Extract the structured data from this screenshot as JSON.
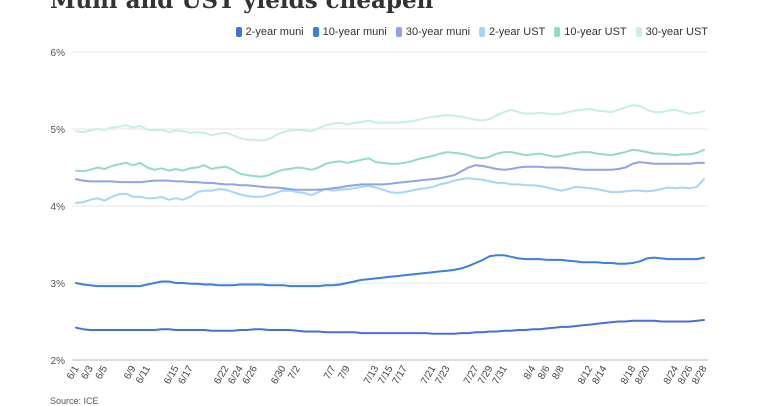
{
  "chart_data": {
    "type": "line",
    "title": "Muni and UST yields cheapen",
    "x": [
      "6/1",
      "6/2",
      "6/3",
      "6/4",
      "6/5",
      "6/6",
      "6/7",
      "6/8",
      "6/9",
      "6/10",
      "6/11",
      "6/12",
      "6/13",
      "6/14",
      "6/15",
      "6/16",
      "6/17",
      "6/18",
      "6/19",
      "6/20",
      "6/21",
      "6/22",
      "6/23",
      "6/24",
      "6/25",
      "6/26",
      "6/27",
      "6/28",
      "6/29",
      "6/30",
      "7/1",
      "7/2",
      "7/3",
      "7/4",
      "7/5",
      "7/6",
      "7/7",
      "7/8",
      "7/9",
      "7/10",
      "7/11",
      "7/12",
      "7/13",
      "7/14",
      "7/15",
      "7/16",
      "7/17",
      "7/18",
      "7/19",
      "7/20",
      "7/21",
      "7/22",
      "7/23",
      "7/24",
      "7/25",
      "7/26",
      "7/27",
      "7/28",
      "7/29",
      "7/30",
      "7/31",
      "8/1",
      "8/2",
      "8/3",
      "8/4",
      "8/5",
      "8/6",
      "8/7",
      "8/8",
      "8/9",
      "8/10",
      "8/11",
      "8/12",
      "8/13",
      "8/14",
      "8/15",
      "8/16",
      "8/17",
      "8/18",
      "8/19",
      "8/20",
      "8/21",
      "8/22",
      "8/23",
      "8/24",
      "8/25",
      "8/26",
      "8/27",
      "8/28"
    ],
    "x_tick_labels": [
      "6/1",
      "6/3",
      "6/5",
      "6/9",
      "6/11",
      "6/15",
      "6/17",
      "6/22",
      "6/24",
      "6/26",
      "6/30",
      "7/2",
      "7/7",
      "7/9",
      "7/13",
      "7/15",
      "7/17",
      "7/21",
      "7/23",
      "7/27",
      "7/29",
      "7/31",
      "8/4",
      "8/6",
      "8/8",
      "8/12",
      "8/14",
      "8/18",
      "8/20",
      "8/24",
      "8/26",
      "8/28"
    ],
    "y_ticks": [
      2,
      3,
      4,
      5,
      6
    ],
    "y_tick_suffix": "%",
    "ylim": [
      2,
      6
    ],
    "legend_position": "top-right",
    "grid": true,
    "series": [
      {
        "name": "2-year muni",
        "color": "#4a6fd8",
        "values": [
          2.42,
          2.4,
          2.39,
          2.39,
          2.39,
          2.39,
          2.39,
          2.39,
          2.39,
          2.39,
          2.39,
          2.39,
          2.4,
          2.4,
          2.39,
          2.39,
          2.39,
          2.39,
          2.39,
          2.38,
          2.38,
          2.38,
          2.38,
          2.39,
          2.39,
          2.4,
          2.4,
          2.39,
          2.39,
          2.39,
          2.39,
          2.38,
          2.37,
          2.37,
          2.37,
          2.36,
          2.36,
          2.36,
          2.36,
          2.36,
          2.35,
          2.35,
          2.35,
          2.35,
          2.35,
          2.35,
          2.35,
          2.35,
          2.35,
          2.35,
          2.34,
          2.34,
          2.34,
          2.34,
          2.35,
          2.35,
          2.36,
          2.36,
          2.37,
          2.37,
          2.38,
          2.38,
          2.39,
          2.39,
          2.4,
          2.4,
          2.41,
          2.42,
          2.43,
          2.43,
          2.44,
          2.45,
          2.46,
          2.47,
          2.48,
          2.49,
          2.5,
          2.5,
          2.51,
          2.51,
          2.51,
          2.51,
          2.5,
          2.5,
          2.5,
          2.5,
          2.5,
          2.51,
          2.52
        ]
      },
      {
        "name": "10-year muni",
        "color": "#3d7fe0",
        "values": [
          3.0,
          2.98,
          2.97,
          2.96,
          2.96,
          2.96,
          2.96,
          2.96,
          2.96,
          2.96,
          2.98,
          3.0,
          3.02,
          3.02,
          3.0,
          3.0,
          2.99,
          2.99,
          2.98,
          2.98,
          2.97,
          2.97,
          2.97,
          2.98,
          2.98,
          2.98,
          2.98,
          2.97,
          2.97,
          2.97,
          2.96,
          2.96,
          2.96,
          2.96,
          2.96,
          2.97,
          2.97,
          2.98,
          3.0,
          3.02,
          3.04,
          3.05,
          3.06,
          3.07,
          3.08,
          3.09,
          3.1,
          3.11,
          3.12,
          3.13,
          3.14,
          3.15,
          3.16,
          3.17,
          3.19,
          3.22,
          3.26,
          3.3,
          3.35,
          3.36,
          3.36,
          3.34,
          3.32,
          3.31,
          3.31,
          3.31,
          3.3,
          3.3,
          3.3,
          3.29,
          3.28,
          3.27,
          3.27,
          3.27,
          3.26,
          3.26,
          3.25,
          3.25,
          3.26,
          3.28,
          3.32,
          3.33,
          3.32,
          3.31,
          3.31,
          3.31,
          3.31,
          3.31,
          3.33
        ]
      },
      {
        "name": "30-year muni",
        "color": "#8fa2ea",
        "values": [
          4.35,
          4.33,
          4.32,
          4.32,
          4.32,
          4.32,
          4.31,
          4.31,
          4.31,
          4.31,
          4.32,
          4.33,
          4.33,
          4.33,
          4.32,
          4.32,
          4.31,
          4.31,
          4.3,
          4.3,
          4.29,
          4.28,
          4.28,
          4.27,
          4.27,
          4.26,
          4.25,
          4.24,
          4.24,
          4.23,
          4.22,
          4.21,
          4.21,
          4.21,
          4.21,
          4.22,
          4.23,
          4.24,
          4.26,
          4.27,
          4.28,
          4.28,
          4.28,
          4.28,
          4.29,
          4.3,
          4.31,
          4.32,
          4.33,
          4.34,
          4.35,
          4.36,
          4.38,
          4.4,
          4.45,
          4.5,
          4.53,
          4.52,
          4.5,
          4.48,
          4.47,
          4.48,
          4.5,
          4.51,
          4.51,
          4.51,
          4.5,
          4.5,
          4.5,
          4.49,
          4.48,
          4.47,
          4.47,
          4.47,
          4.47,
          4.47,
          4.48,
          4.5,
          4.55,
          4.57,
          4.56,
          4.55,
          4.55,
          4.55,
          4.55,
          4.55,
          4.55,
          4.56,
          4.56
        ]
      },
      {
        "name": "2-year UST",
        "color": "#a9d4f2",
        "values": [
          4.04,
          4.05,
          4.08,
          4.1,
          4.07,
          4.12,
          4.15,
          4.16,
          4.12,
          4.12,
          4.1,
          4.1,
          4.12,
          4.08,
          4.1,
          4.08,
          4.12,
          4.18,
          4.2,
          4.2,
          4.22,
          4.21,
          4.18,
          4.15,
          4.13,
          4.12,
          4.12,
          4.14,
          4.17,
          4.2,
          4.2,
          4.18,
          4.17,
          4.14,
          4.18,
          4.22,
          4.2,
          4.21,
          4.22,
          4.23,
          4.25,
          4.26,
          4.24,
          4.21,
          4.18,
          4.17,
          4.18,
          4.2,
          4.22,
          4.23,
          4.25,
          4.28,
          4.3,
          4.33,
          4.35,
          4.36,
          4.35,
          4.34,
          4.32,
          4.3,
          4.3,
          4.28,
          4.28,
          4.27,
          4.27,
          4.26,
          4.24,
          4.22,
          4.2,
          4.22,
          4.25,
          4.24,
          4.23,
          4.22,
          4.2,
          4.18,
          4.18,
          4.19,
          4.2,
          4.2,
          4.19,
          4.2,
          4.22,
          4.24,
          4.23,
          4.24,
          4.23,
          4.25,
          4.35
        ]
      },
      {
        "name": "10-year UST",
        "color": "#92dcc0",
        "values": [
          4.46,
          4.45,
          4.47,
          4.5,
          4.48,
          4.52,
          4.54,
          4.56,
          4.53,
          4.56,
          4.5,
          4.47,
          4.49,
          4.46,
          4.48,
          4.46,
          4.49,
          4.5,
          4.53,
          4.48,
          4.5,
          4.51,
          4.47,
          4.42,
          4.4,
          4.39,
          4.38,
          4.4,
          4.44,
          4.47,
          4.48,
          4.5,
          4.49,
          4.47,
          4.5,
          4.55,
          4.57,
          4.58,
          4.56,
          4.58,
          4.6,
          4.62,
          4.57,
          4.56,
          4.55,
          4.55,
          4.56,
          4.58,
          4.61,
          4.63,
          4.65,
          4.68,
          4.7,
          4.69,
          4.68,
          4.66,
          4.63,
          4.62,
          4.64,
          4.68,
          4.7,
          4.7,
          4.68,
          4.66,
          4.67,
          4.68,
          4.66,
          4.64,
          4.65,
          4.67,
          4.69,
          4.7,
          4.7,
          4.68,
          4.67,
          4.66,
          4.68,
          4.7,
          4.73,
          4.72,
          4.7,
          4.68,
          4.68,
          4.67,
          4.66,
          4.67,
          4.67,
          4.69,
          4.73
        ]
      },
      {
        "name": "30-year UST",
        "color": "#c8f0da",
        "values": [
          4.97,
          4.96,
          4.98,
          5.0,
          4.99,
          5.02,
          5.03,
          5.05,
          5.02,
          5.04,
          4.99,
          4.98,
          4.99,
          4.96,
          4.98,
          4.97,
          4.95,
          4.96,
          4.95,
          4.92,
          4.94,
          4.95,
          4.92,
          4.88,
          4.86,
          4.86,
          4.85,
          4.87,
          4.92,
          4.96,
          4.98,
          4.99,
          4.98,
          4.97,
          5.01,
          5.05,
          5.07,
          5.08,
          5.06,
          5.08,
          5.09,
          5.11,
          5.08,
          5.08,
          5.08,
          5.08,
          5.09,
          5.1,
          5.12,
          5.14,
          5.16,
          5.17,
          5.18,
          5.17,
          5.16,
          5.14,
          5.12,
          5.11,
          5.13,
          5.18,
          5.22,
          5.25,
          5.22,
          5.2,
          5.2,
          5.21,
          5.2,
          5.19,
          5.2,
          5.22,
          5.24,
          5.25,
          5.26,
          5.24,
          5.23,
          5.22,
          5.25,
          5.28,
          5.31,
          5.3,
          5.25,
          5.22,
          5.22,
          5.24,
          5.25,
          5.22,
          5.2,
          5.21,
          5.23
        ]
      }
    ]
  },
  "source": "Source: ICE"
}
